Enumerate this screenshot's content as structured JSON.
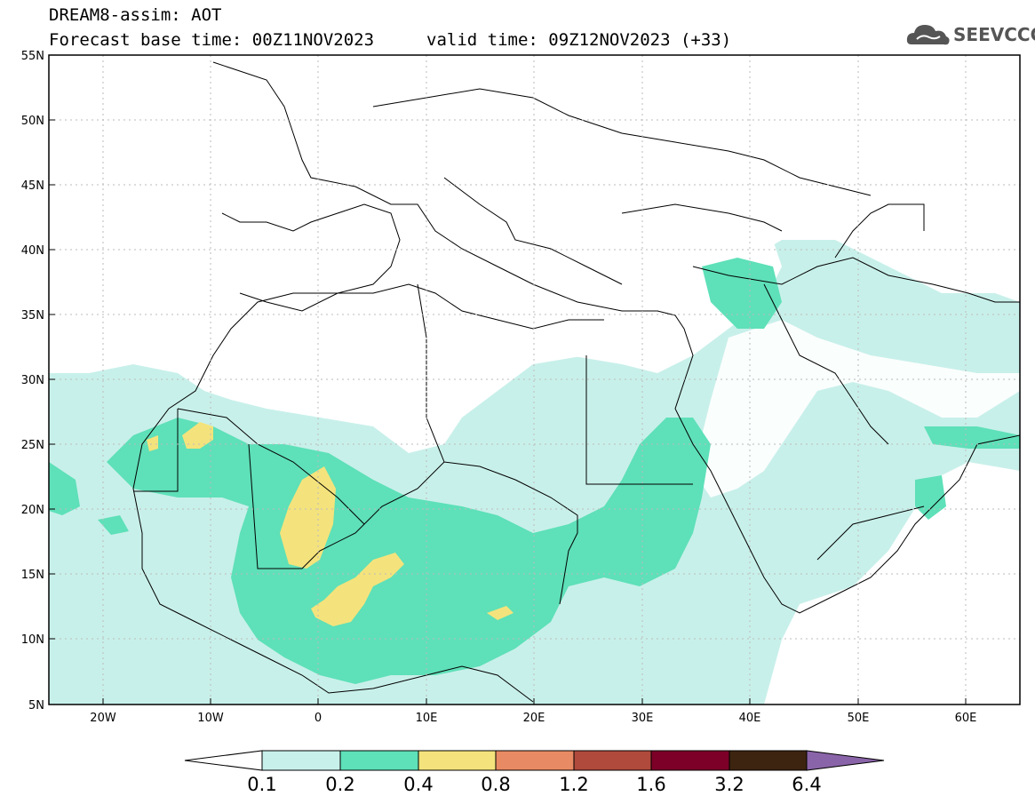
{
  "header": {
    "title": "DREAM8-assim: AOT",
    "base_time": "Forecast base time: 00Z11NOV2023",
    "valid_time": "valid time: 09Z12NOV2023 (+33)"
  },
  "logo": {
    "text": "SEEVCCC",
    "icon": "cloud-icon"
  },
  "map": {
    "lon_range": [
      -25,
      65
    ],
    "lat_range": [
      5,
      55
    ],
    "lat_ticks": [
      "55N",
      "50N",
      "45N",
      "40N",
      "35N",
      "30N",
      "25N",
      "20N",
      "15N",
      "10N",
      "5N"
    ],
    "lon_ticks": [
      "20W",
      "10W",
      "0",
      "10E",
      "20E",
      "30E",
      "40E",
      "50E",
      "60E"
    ]
  },
  "colorbar": {
    "labels": [
      "0.1",
      "0.2",
      "0.4",
      "0.8",
      "1.2",
      "1.6",
      "3.2",
      "6.4"
    ],
    "colors": [
      "#ffffff",
      "#c8f0ea",
      "#5ee0b8",
      "#f4e37c",
      "#e88a63",
      "#b04a3c",
      "#7d0028",
      "#3d2410",
      "#8a64a8"
    ]
  }
}
